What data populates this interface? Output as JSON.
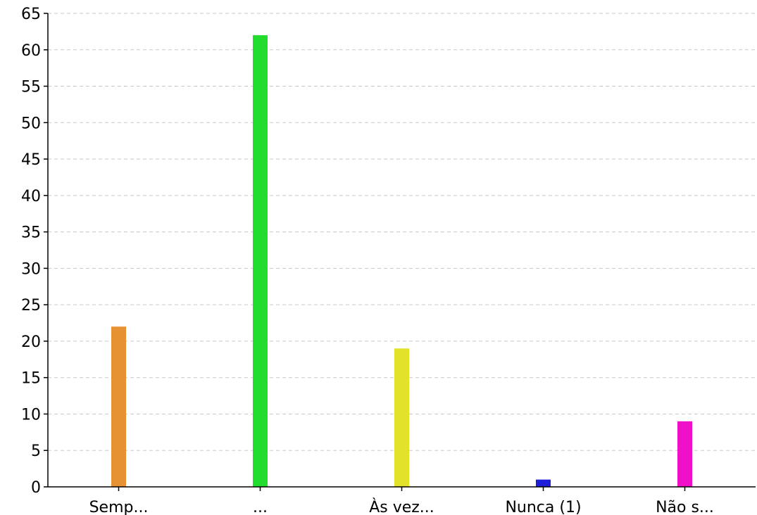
{
  "chart_data": {
    "type": "bar",
    "title": "",
    "xlabel": "",
    "ylabel": "",
    "categories": [
      "Semp...",
      "...",
      "Às vez...",
      "Nunca (1)",
      "Não s..."
    ],
    "values": [
      22,
      62,
      19,
      1,
      9
    ],
    "colors": [
      "#e69232",
      "#22dd2e",
      "#e2e22a",
      "#1e1ed8",
      "#f010c8"
    ],
    "ylim": [
      0,
      65
    ],
    "yticks": [
      0,
      5,
      10,
      15,
      20,
      25,
      30,
      35,
      40,
      45,
      50,
      55,
      60,
      65
    ],
    "grid": true,
    "grid_style": "dashed-horizontal",
    "legend": "none"
  }
}
